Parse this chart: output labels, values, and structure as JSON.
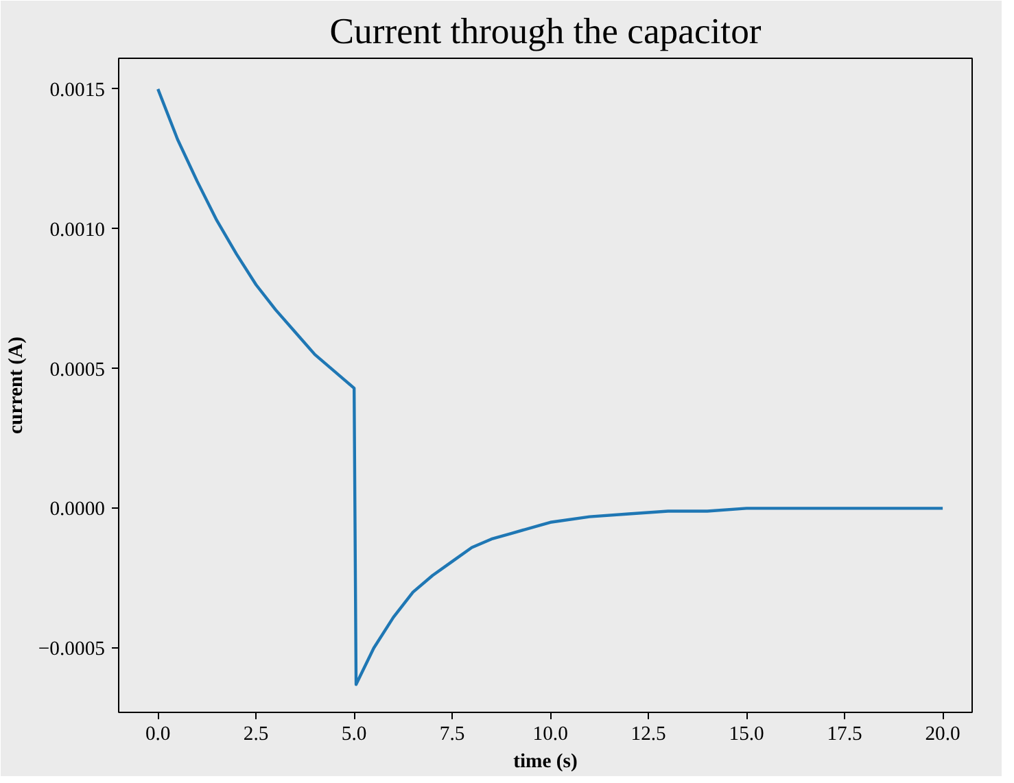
{
  "chart_data": {
    "type": "line",
    "title": "Current through the capacitor",
    "xlabel": "time (s)",
    "ylabel": "current (A)",
    "x": [
      0,
      0.5,
      1,
      1.5,
      2,
      2.5,
      3,
      3.5,
      4,
      4.5,
      5,
      5.05,
      5.5,
      6,
      6.5,
      7,
      7.5,
      8,
      8.5,
      9,
      10,
      11,
      12,
      13,
      14,
      15,
      16,
      17,
      18,
      20
    ],
    "series": [
      {
        "color": "#1f77b4",
        "values": [
          0.0015,
          0.00132,
          0.00117,
          0.00103,
          0.00091,
          0.0008,
          0.00071,
          0.00063,
          0.00055,
          0.00049,
          0.00043,
          -0.00063,
          -0.0005,
          -0.00039,
          -0.0003,
          -0.00024,
          -0.00019,
          -0.00014,
          -0.00011,
          -9e-05,
          -5e-05,
          -3e-05,
          -2e-05,
          -1e-05,
          -1e-05,
          0,
          0,
          0,
          0,
          0
        ]
      }
    ],
    "xlim": [
      -1,
      20.75
    ],
    "ylim": [
      -0.00073,
      0.00161
    ],
    "xticks": [
      {
        "value": 0,
        "label": "0.0"
      },
      {
        "value": 2.5,
        "label": "2.5"
      },
      {
        "value": 5,
        "label": "5.0"
      },
      {
        "value": 7.5,
        "label": "7.5"
      },
      {
        "value": 10,
        "label": "10.0"
      },
      {
        "value": 12.5,
        "label": "12.5"
      },
      {
        "value": 15,
        "label": "15.0"
      },
      {
        "value": 17.5,
        "label": "17.5"
      },
      {
        "value": 20,
        "label": "20.0"
      }
    ],
    "yticks": [
      {
        "value": -0.0005,
        "label": "−0.0005"
      },
      {
        "value": 0,
        "label": "0.0000"
      },
      {
        "value": 0.0005,
        "label": "0.0005"
      },
      {
        "value": 0.001,
        "label": "0.0010"
      },
      {
        "value": 0.0015,
        "label": "0.0015"
      }
    ],
    "grid": false,
    "marker": "none",
    "line_style": "solid"
  }
}
